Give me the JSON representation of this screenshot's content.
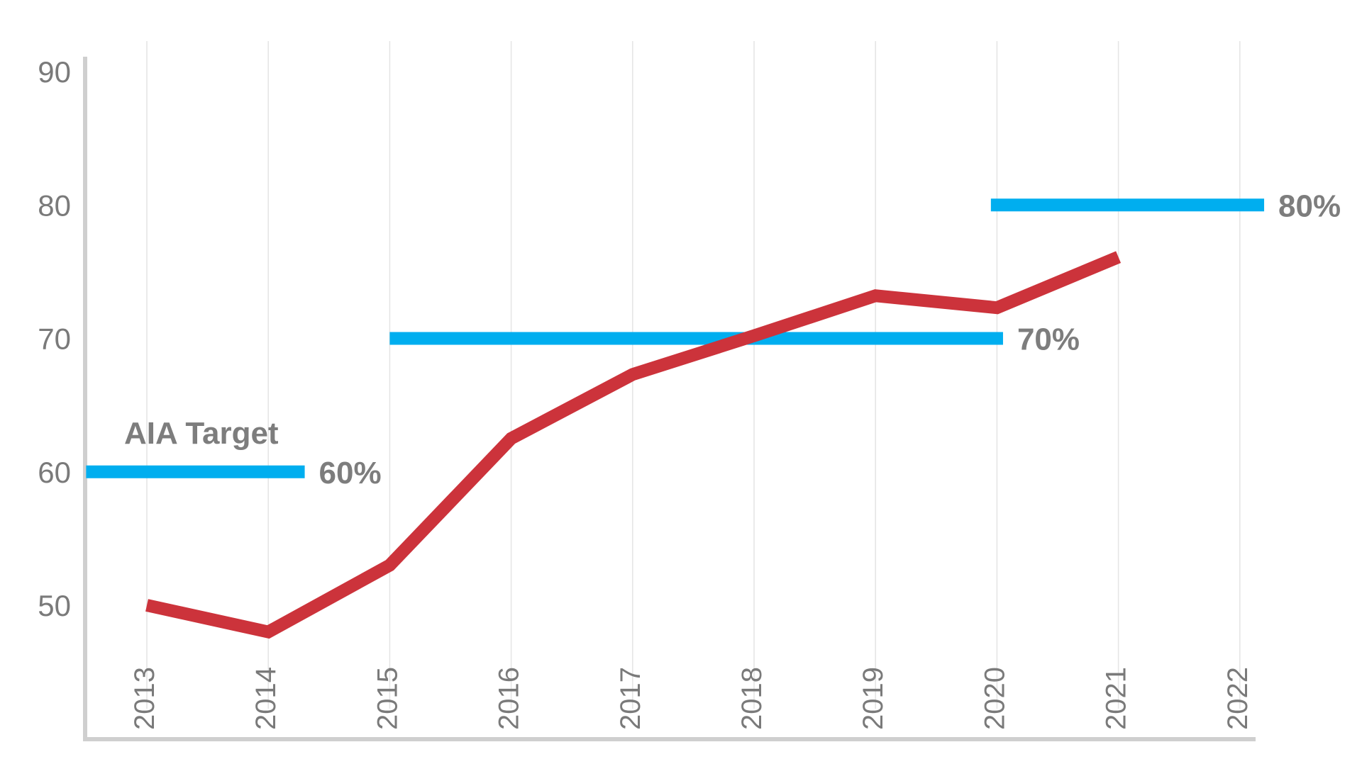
{
  "chart_data": {
    "type": "line",
    "title": "",
    "xlabel": "",
    "ylabel": "",
    "categories": [
      "2013",
      "2014",
      "2015",
      "2016",
      "2017",
      "2018",
      "2019",
      "2020",
      "2021",
      "2022"
    ],
    "ylim": [
      42,
      90
    ],
    "yticks": [
      "50",
      "60",
      "70",
      "80",
      "90"
    ],
    "grid": {
      "vertical": true,
      "horizontal": false
    },
    "series": [
      {
        "values": [
          50,
          48,
          53,
          62.5,
          67.3,
          70.2,
          73.2,
          72.3,
          76.1,
          null
        ],
        "color": "#cc333b"
      }
    ],
    "target_title": "AIA Target",
    "targets": [
      {
        "label": "60%",
        "value": 60,
        "x_from": 2012.5,
        "x_to": 2014.3
      },
      {
        "label": "70%",
        "value": 70,
        "x_from": 2015,
        "x_to": 2020.05
      },
      {
        "label": "80%",
        "value": 80,
        "x_from": 2019.95,
        "x_to": 2022.2
      }
    ],
    "target_color": "#00aeef",
    "grid_color": "#e4e4e4",
    "axis_color": "#cfcfcf"
  }
}
